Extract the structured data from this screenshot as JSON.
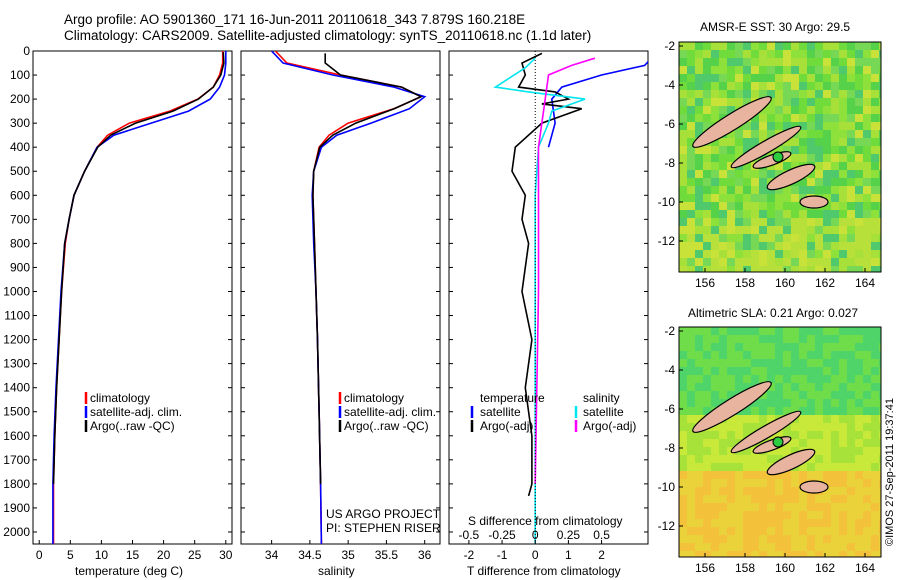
{
  "header": {
    "line1": "Argo profile: AO 5901360_171 16-Jun-2011 20110618_343 7.879S 160.218E",
    "line2": "Climatology: CARS2009. Satellite-adjusted climatology: synTS_20110618.nc (1.1d later)"
  },
  "colors": {
    "climatology": "#ff0000",
    "satellite": "#0000ff",
    "argo": "#000000",
    "sat_salinity": "#00e5ee",
    "argo_salinity": "#ff00ff",
    "land": "#e8b4a0"
  },
  "chart_data": [
    {
      "type": "line",
      "xlabel": "temperature (deg C)",
      "xlim": [
        -1,
        31
      ],
      "ylim": [
        2050,
        0
      ],
      "xticks": [
        "0",
        "5",
        "10",
        "15",
        "20",
        "25",
        "30"
      ],
      "yticks": [
        "0",
        "100",
        "200",
        "300",
        "400",
        "500",
        "600",
        "700",
        "800",
        "900",
        "1000",
        "1100",
        "1200",
        "1300",
        "1400",
        "1500",
        "1600",
        "1700",
        "1800",
        "1900",
        "2000"
      ],
      "legend": [
        "climatology",
        "satellite-adj. clim.",
        "Argo(..raw -QC)"
      ],
      "series": [
        {
          "name": "climatology",
          "x": [
            29.5,
            29.5,
            29.0,
            28.0,
            25.5,
            21.0,
            14.5,
            11.0,
            9.3,
            7.3,
            5.6,
            4.8,
            4.2,
            3.6,
            3.2,
            2.8,
            2.5,
            2.3,
            2.3
          ],
          "y": [
            0,
            50,
            100,
            150,
            200,
            250,
            300,
            350,
            400,
            500,
            600,
            700,
            800,
            1000,
            1200,
            1400,
            1600,
            1800,
            2050
          ]
        },
        {
          "name": "satellite-adj. clim.",
          "x": [
            30.0,
            30.0,
            29.8,
            29.0,
            27.5,
            24.0,
            18.0,
            12.0,
            9.3,
            7.3,
            5.6,
            4.8,
            4.1,
            3.5,
            3.1,
            2.7,
            2.4,
            2.2,
            2.2
          ],
          "y": [
            0,
            50,
            100,
            150,
            200,
            250,
            300,
            350,
            400,
            500,
            600,
            700,
            800,
            1000,
            1200,
            1400,
            1600,
            1800,
            2050
          ]
        },
        {
          "name": "Argo(..raw -QC)",
          "x": [
            29.6,
            29.7,
            29.2,
            28.0,
            25.6,
            21.5,
            15.5,
            11.5,
            9.4,
            7.3,
            5.6,
            4.8,
            4.1,
            3.6,
            3.2,
            2.8,
            2.5,
            2.3
          ],
          "y": [
            5,
            50,
            100,
            150,
            200,
            250,
            300,
            350,
            400,
            500,
            600,
            700,
            800,
            1000,
            1200,
            1400,
            1600,
            1800
          ]
        }
      ]
    },
    {
      "type": "line",
      "xlabel": "salinity",
      "xlim": [
        33.6,
        36.2
      ],
      "ylim": [
        2050,
        0
      ],
      "xticks": [
        "34",
        "34.5",
        "35",
        "35.5",
        "36"
      ],
      "legend": [
        "climatology",
        "satellite-adj. clim.",
        "Argo(..raw -QC)"
      ],
      "annotation": [
        "US ARGO PROJECT",
        "PI: STEPHEN RISER"
      ],
      "series": [
        {
          "name": "climatology",
          "x": [
            34.05,
            34.2,
            34.9,
            35.7,
            35.95,
            35.6,
            35.0,
            34.75,
            34.62,
            34.55,
            34.54,
            34.56,
            34.58,
            34.6,
            34.62,
            34.64,
            34.65
          ],
          "y": [
            0,
            50,
            100,
            150,
            190,
            240,
            300,
            350,
            400,
            500,
            600,
            800,
            1000,
            1200,
            1500,
            1800,
            2050
          ]
        },
        {
          "name": "satellite-adj. clim.",
          "x": [
            34.0,
            34.15,
            34.8,
            35.6,
            36.0,
            35.8,
            35.3,
            34.85,
            34.65,
            34.55,
            34.53,
            34.55,
            34.58,
            34.6,
            34.62,
            34.64,
            34.65
          ],
          "y": [
            0,
            50,
            100,
            150,
            190,
            240,
            300,
            350,
            400,
            500,
            600,
            800,
            1000,
            1200,
            1500,
            1800,
            2050
          ]
        },
        {
          "name": "Argo(..raw -QC)",
          "x": [
            34.7,
            34.7,
            34.9,
            35.7,
            35.95,
            35.6,
            35.1,
            34.8,
            34.63,
            34.55,
            34.54,
            34.56,
            34.58,
            34.6,
            34.62,
            34.64
          ],
          "y": [
            10,
            50,
            100,
            150,
            190,
            240,
            300,
            350,
            400,
            500,
            600,
            800,
            1000,
            1200,
            1500,
            1800
          ]
        }
      ]
    },
    {
      "type": "line",
      "xlabel": "T difference from climatology",
      "xlabel_top": "S difference from climatology",
      "xlim": [
        -2.6,
        3.4
      ],
      "ylim": [
        2050,
        0
      ],
      "xticks_bottom": [
        "-2",
        "-1",
        "0",
        "1",
        "2"
      ],
      "xticks_top": [
        "-0.5",
        "-0.25",
        "0",
        "0.25",
        "0.5"
      ],
      "legend": {
        "temperature_header": "temperature",
        "salinity_header": "salinity",
        "items": [
          "satellite",
          "Argo(-adj)",
          "satellite",
          "Argo(-adj)"
        ]
      },
      "series": [
        {
          "name": "satellite",
          "x": [
            0.4,
            0.6,
            0.5,
            0.8,
            2.0,
            3.3,
            3.5
          ],
          "y": [
            400,
            300,
            200,
            150,
            100,
            60,
            30
          ]
        },
        {
          "name": "Argo(-adj)",
          "x": [
            0.2,
            -0.4,
            -0.3,
            -0.5,
            0.6,
            1.0,
            0.2,
            1.4,
            0.2,
            -0.6,
            -0.7,
            -0.3,
            -0.4,
            -0.2,
            -0.4,
            -0.1,
            -0.3,
            -0.1,
            -0.1,
            -0.2
          ],
          "y": [
            10,
            50,
            100,
            150,
            170,
            200,
            220,
            240,
            300,
            400,
            500,
            600,
            700,
            800,
            1000,
            1200,
            1400,
            1600,
            1800,
            1850
          ]
        },
        {
          "name": "satellite",
          "x": [
            0.0,
            -0.3,
            -1.2,
            -0.2,
            1.5,
            0.5,
            0.4,
            0.1,
            0.0,
            0.0,
            0.0
          ],
          "y": [
            30,
            70,
            150,
            170,
            200,
            250,
            300,
            400,
            600,
            1200,
            2050
          ]
        },
        {
          "name": "Argo(-adj)",
          "x": [
            1.8,
            1.1,
            0.4,
            0.3,
            0.1,
            0.1,
            0.0
          ],
          "y": [
            30,
            60,
            100,
            200,
            400,
            1000,
            1800
          ]
        }
      ]
    },
    {
      "type": "heatmap",
      "title": "AMSR-E SST: 30 Argo: 29.5",
      "xticks": [
        "156",
        "158",
        "160",
        "162",
        "164"
      ],
      "yticks": [
        "-2",
        "-4",
        "-6",
        "-8",
        "-10",
        "-12"
      ]
    },
    {
      "type": "heatmap",
      "title": "Altimetric SLA: 0.21 Argo: 0.027",
      "xticks": [
        "156",
        "158",
        "160",
        "162",
        "164"
      ],
      "yticks": [
        "-2",
        "-4",
        "-6",
        "-8",
        "-10",
        "-12"
      ]
    }
  ],
  "stamp": "©IMOS 27-Sep-2011 19:37:41"
}
